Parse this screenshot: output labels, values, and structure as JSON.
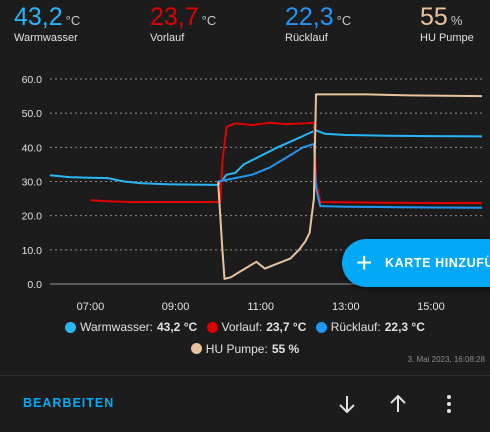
{
  "stats": [
    {
      "value": "43,2",
      "unit": "°C",
      "name": "Warmwasser",
      "color": "#29b6f6"
    },
    {
      "value": "23,7",
      "unit": "°C",
      "name": "Vorlauf",
      "color": "#e00000"
    },
    {
      "value": "22,3",
      "unit": "°C",
      "name": "Rücklauf",
      "color": "#2196f3"
    },
    {
      "value": "55",
      "unit": "%",
      "name": "HU Pumpe",
      "color": "#e8c39e"
    }
  ],
  "chart_data": {
    "type": "line",
    "y_ticks": [
      "60.0",
      "50.0",
      "40.0",
      "30.0",
      "20.0",
      "10.0",
      "0.0"
    ],
    "x_ticks": [
      "07:00",
      "09:00",
      "11:00",
      "13:00",
      "15:00"
    ],
    "ylim": [
      0,
      60
    ],
    "xlim": [
      6.05,
      16.2
    ],
    "grid": true,
    "series": [
      {
        "name": "Warmwasser",
        "color": "#29b6f6",
        "x": [
          6.05,
          6.5,
          7.0,
          7.4,
          7.8,
          8.2,
          8.8,
          9.4,
          10.0,
          10.2,
          10.4,
          10.6,
          11.0,
          11.4,
          11.8,
          12.2,
          12.3,
          12.5,
          13.0,
          14.0,
          15.0,
          16.2
        ],
        "y": [
          31.8,
          31.3,
          31.1,
          31.0,
          30.0,
          29.5,
          29.2,
          29.1,
          29.0,
          32.0,
          32.5,
          35.0,
          37.5,
          40.0,
          42.2,
          44.5,
          45.0,
          44.0,
          43.6,
          43.4,
          43.3,
          43.2
        ]
      },
      {
        "name": "Vorlauf",
        "color": "#e00000",
        "x": [
          7.0,
          7.4,
          8.0,
          8.8,
          9.6,
          10.05,
          10.1,
          10.2,
          10.4,
          10.8,
          11.2,
          11.6,
          12.0,
          12.25,
          12.3,
          12.4,
          13.0,
          14.0,
          15.0,
          16.2
        ],
        "y": [
          24.5,
          24.2,
          24.0,
          24.0,
          24.0,
          24.0,
          36.0,
          46.0,
          47.0,
          46.5,
          47.2,
          46.8,
          47.0,
          47.2,
          30.0,
          24.0,
          23.9,
          23.8,
          23.7,
          23.7
        ]
      },
      {
        "name": "Rücklauf",
        "color": "#2196f3",
        "x": [
          10.0,
          10.4,
          10.8,
          11.2,
          11.6,
          12.0,
          12.25,
          12.3,
          12.4,
          13.0,
          14.0,
          15.0,
          16.2
        ],
        "y": [
          30.0,
          31.0,
          32.0,
          34.0,
          37.0,
          40.0,
          41.0,
          28.0,
          22.8,
          22.6,
          22.5,
          22.4,
          22.3
        ]
      },
      {
        "name": "HU Pumpe",
        "color": "#e8c39e",
        "x": [
          10.0,
          10.1,
          10.15,
          10.3,
          10.5,
          10.7,
          10.9,
          11.1,
          11.3,
          11.5,
          11.7,
          11.9,
          12.05,
          12.15,
          12.25,
          12.3,
          12.5,
          13.5,
          14.5,
          16.2
        ],
        "y": [
          30.0,
          10.0,
          1.5,
          2.0,
          3.5,
          5.0,
          6.5,
          4.5,
          5.5,
          6.5,
          7.5,
          10.0,
          12.5,
          15.0,
          25.0,
          55.5,
          55.5,
          55.5,
          55.2,
          55.0
        ]
      }
    ]
  },
  "legend": [
    {
      "name": "Warmwasser:",
      "value": "43,2 °C",
      "color": "#29b6f6"
    },
    {
      "name": "Vorlauf:",
      "value": "23,7 °C",
      "color": "#e00000"
    },
    {
      "name": "Rücklauf:",
      "value": "22,3 °C",
      "color": "#2196f3"
    },
    {
      "name": "HU Pumpe:",
      "value": "55 %",
      "color": "#e8c39e"
    }
  ],
  "timestamp": "3. Mai 2023, 16:08:28",
  "fab": {
    "label": "KARTE HINZUFÜ",
    "icon": "plus-icon"
  },
  "toolbar": {
    "edit_label": "BEARBEITEN",
    "icons": [
      "arrow-down-icon",
      "arrow-up-icon",
      "more-vertical-icon"
    ]
  }
}
